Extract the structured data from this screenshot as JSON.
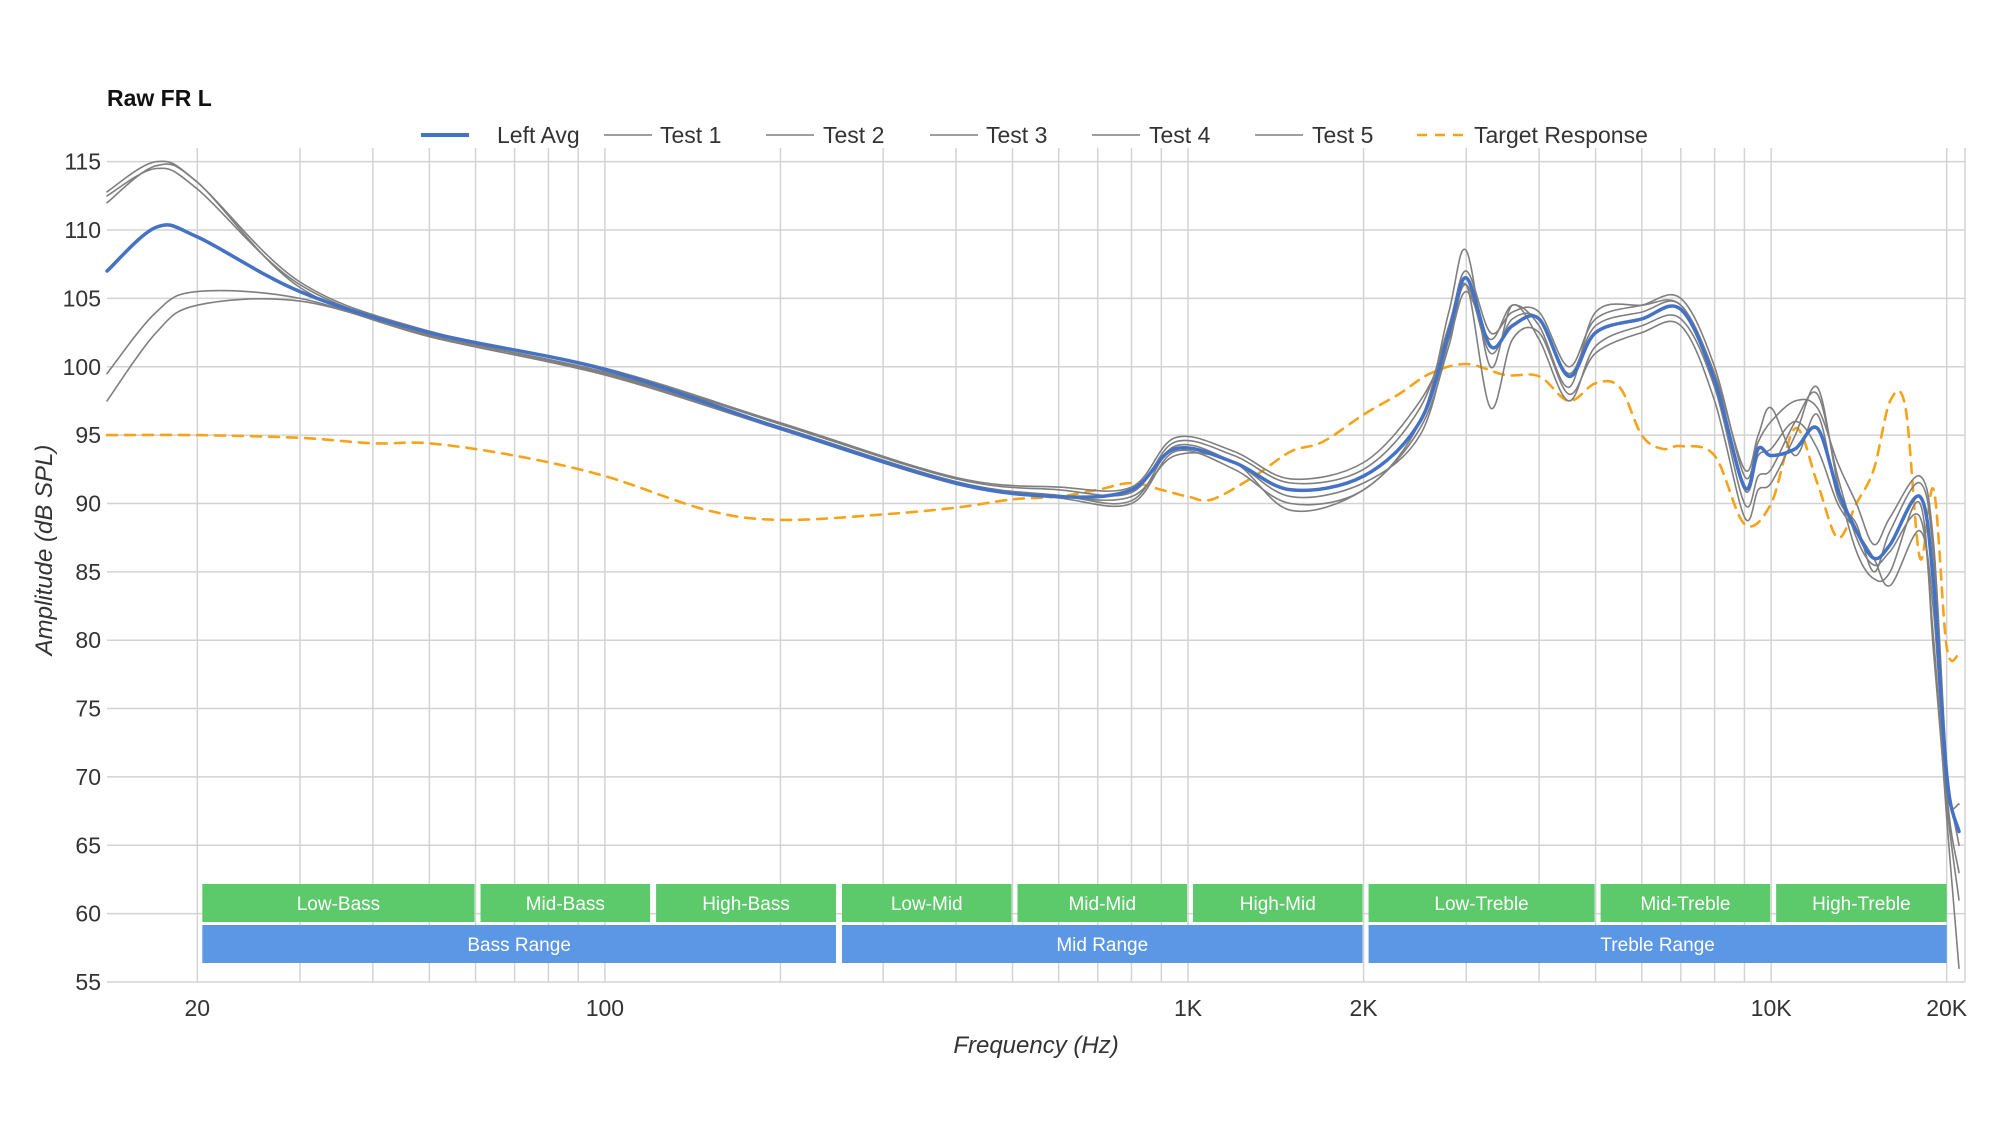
{
  "colors": {
    "left_avg": "#4472c4",
    "tests": "#7f7f7f",
    "target": "#f5a31a",
    "band_green": "#5cc96b",
    "band_blue": "#5c97e6"
  },
  "chart_data": {
    "type": "line",
    "title": "Raw FR L",
    "xlabel": "Frequency (Hz)",
    "ylabel": "Amplitude (dB SPL)",
    "x_scale": "log",
    "xlim": [
      14,
      21500
    ],
    "ylim": [
      55,
      116
    ],
    "grid": true,
    "legend_position": "top",
    "y_ticks": [
      "115",
      "110",
      "105",
      "100",
      "95",
      "90",
      "85",
      "80",
      "75",
      "70",
      "65",
      "60",
      "55"
    ],
    "x_ticks": [
      {
        "value": 20,
        "label": "20"
      },
      {
        "value": 100,
        "label": "100"
      },
      {
        "value": 1000,
        "label": "1K"
      },
      {
        "value": 2000,
        "label": "2K"
      },
      {
        "value": 10000,
        "label": "10K"
      },
      {
        "value": 20000,
        "label": "20K"
      }
    ],
    "minor_grid_x": [
      30,
      40,
      50,
      60,
      70,
      80,
      90,
      200,
      300,
      400,
      500,
      600,
      700,
      800,
      900,
      3000,
      4000,
      5000,
      6000,
      7000,
      8000,
      9000
    ],
    "ranges_top": [
      {
        "label": "Low-Bass",
        "from": 20,
        "to": 60
      },
      {
        "label": "Mid-Bass",
        "from": 60,
        "to": 120
      },
      {
        "label": "High-Bass",
        "from": 120,
        "to": 250
      },
      {
        "label": "Low-Mid",
        "from": 250,
        "to": 500
      },
      {
        "label": "Mid-Mid",
        "from": 500,
        "to": 1000
      },
      {
        "label": "High-Mid",
        "from": 1000,
        "to": 2000
      },
      {
        "label": "Low-Treble",
        "from": 2000,
        "to": 5000
      },
      {
        "label": "Mid-Treble",
        "from": 5000,
        "to": 10000
      },
      {
        "label": "High-Treble",
        "from": 10000,
        "to": 20000
      }
    ],
    "ranges_bottom": [
      {
        "label": "Bass Range",
        "from": 20,
        "to": 250
      },
      {
        "label": "Mid Range",
        "from": 250,
        "to": 2000
      },
      {
        "label": "Treble Range",
        "from": 2000,
        "to": 20000
      }
    ],
    "series": [
      {
        "name": "Left Avg",
        "style": "avg",
        "x": [
          14,
          17,
          20,
          30,
          50,
          100,
          200,
          400,
          600,
          800,
          950,
          1200,
          1500,
          2000,
          2500,
          2800,
          3000,
          3300,
          3600,
          4000,
          4500,
          5000,
          6000,
          7000,
          8000,
          9000,
          9500,
          10000,
          11000,
          12000,
          13000,
          14000,
          15000,
          16000,
          18000,
          19000,
          20000,
          21000
        ],
        "y": [
          107,
          110.2,
          109.5,
          105.5,
          102.5,
          99.8,
          95.5,
          91.5,
          90.5,
          91,
          94,
          93,
          91,
          92,
          96,
          102.5,
          106.5,
          101.5,
          103,
          103.5,
          99.3,
          102.5,
          103.5,
          104.2,
          99,
          91.2,
          94,
          93.5,
          94,
          95.5,
          91,
          88,
          86,
          87,
          90.5,
          84,
          70,
          66
        ]
      },
      {
        "name": "Test 1",
        "style": "test",
        "x": [
          14,
          17,
          20,
          30,
          50,
          100,
          200,
          400,
          600,
          800,
          950,
          1200,
          1500,
          2000,
          2500,
          2800,
          3000,
          3300,
          3600,
          4000,
          4500,
          5000,
          6000,
          7000,
          8000,
          9000,
          9500,
          10000,
          11000,
          12000,
          13000,
          14000,
          15000,
          16000,
          18000,
          19000,
          20000,
          21000
        ],
        "y": [
          112.5,
          114.5,
          113,
          106,
          102.5,
          99.8,
          95.8,
          91.8,
          91,
          90.8,
          94.5,
          93.5,
          91.5,
          92.5,
          97,
          103,
          107,
          102.5,
          104,
          104,
          100,
          103.5,
          104.5,
          105,
          100,
          92,
          94.5,
          96,
          97.5,
          97,
          93,
          90,
          87,
          89,
          92,
          87,
          71,
          65
        ]
      },
      {
        "name": "Test 2",
        "style": "test",
        "x": [
          14,
          17,
          20,
          30,
          50,
          100,
          200,
          400,
          600,
          800,
          950,
          1200,
          1500,
          2000,
          2500,
          2800,
          3000,
          3300,
          3600,
          4000,
          4500,
          5000,
          6000,
          7000,
          8000,
          9000,
          9500,
          10000,
          11000,
          12000,
          13000,
          14000,
          15000,
          16000,
          18000,
          19000,
          20000,
          21000
        ],
        "y": [
          112,
          114.7,
          113.5,
          105.8,
          102.4,
          99.6,
          95.6,
          91.6,
          90.6,
          90.2,
          94.2,
          93,
          90.5,
          91.5,
          95,
          102,
          106,
          101,
          103.5,
          103.5,
          99.5,
          103,
          104,
          104.5,
          99,
          91,
          93.5,
          94,
          96,
          94,
          90,
          88,
          86,
          84,
          88,
          82,
          69,
          68
        ]
      },
      {
        "name": "Test 3",
        "style": "test",
        "x": [
          14,
          17,
          20,
          30,
          50,
          100,
          200,
          400,
          600,
          800,
          950,
          1200,
          1500,
          2000,
          2500,
          2800,
          3000,
          3300,
          3600,
          4000,
          4500,
          5000,
          6000,
          7000,
          8000,
          9000,
          9500,
          10000,
          11000,
          12000,
          13000,
          14000,
          15000,
          16000,
          18000,
          19000,
          20000,
          21000
        ],
        "y": [
          99.5,
          104,
          105.5,
          105,
          102.2,
          99.4,
          95.4,
          91.4,
          90.4,
          90,
          93.8,
          92.5,
          90,
          91,
          96,
          104,
          108.5,
          100,
          104.5,
          102,
          97.5,
          101.5,
          103,
          103.5,
          98.5,
          90,
          92,
          92.5,
          96,
          98,
          92,
          87.5,
          85.5,
          86.5,
          89,
          80,
          67,
          56
        ]
      },
      {
        "name": "Test 4",
        "style": "test",
        "x": [
          14,
          17,
          20,
          30,
          50,
          100,
          200,
          400,
          600,
          800,
          950,
          1200,
          1500,
          2000,
          2500,
          2800,
          3000,
          3300,
          3600,
          4000,
          4500,
          5000,
          6000,
          7000,
          8000,
          9000,
          9500,
          10000,
          11000,
          12000,
          13000,
          14000,
          15000,
          16000,
          18000,
          19000,
          20000,
          21000
        ],
        "y": [
          97.5,
          102.5,
          104.5,
          104.8,
          102.3,
          99.5,
          95.5,
          91.5,
          90.5,
          90.5,
          93.5,
          93,
          89.5,
          91,
          95.5,
          101.5,
          106,
          97,
          102,
          102.5,
          98,
          101,
          102.5,
          103,
          97.5,
          89,
          91,
          91.5,
          95,
          98.5,
          91.5,
          86.5,
          84.5,
          85,
          90,
          79,
          68,
          61
        ]
      },
      {
        "name": "Test 5",
        "style": "test",
        "x": [
          14,
          17,
          20,
          30,
          50,
          100,
          200,
          400,
          600,
          800,
          950,
          1200,
          1500,
          2000,
          2500,
          2800,
          3000,
          3300,
          3600,
          4000,
          4500,
          5000,
          6000,
          7000,
          8000,
          9000,
          9500,
          10000,
          11000,
          12000,
          13000,
          14000,
          15000,
          16000,
          18000,
          19000,
          20000,
          21000
        ],
        "y": [
          112.8,
          115,
          113.5,
          106.2,
          102.6,
          99.9,
          95.9,
          91.9,
          91.2,
          91.2,
          94.8,
          93.8,
          91.8,
          93,
          97.5,
          102,
          105.5,
          102,
          104.5,
          103,
          98.5,
          104,
          104.5,
          104.5,
          99.5,
          92.5,
          95,
          97,
          93.5,
          96.5,
          90.5,
          88.5,
          85,
          88,
          91.5,
          86,
          69,
          63
        ]
      },
      {
        "name": "Target Response",
        "style": "target",
        "x": [
          14,
          20,
          30,
          40,
          50,
          70,
          100,
          150,
          200,
          300,
          400,
          500,
          600,
          700,
          800,
          900,
          1000,
          1100,
          1300,
          1500,
          1700,
          2000,
          2300,
          2600,
          3000,
          3500,
          4000,
          4500,
          5000,
          5500,
          6000,
          6500,
          7000,
          8000,
          9000,
          10000,
          11000,
          12000,
          13000,
          14000,
          15000,
          16000,
          17000,
          18000,
          19000,
          20000,
          21000
        ],
        "y": [
          95,
          95,
          94.8,
          94.4,
          94.4,
          93.5,
          92,
          89.5,
          88.8,
          89.2,
          89.7,
          90.3,
          90.5,
          91,
          91.5,
          91,
          90.5,
          90.3,
          92,
          93.8,
          94.5,
          96.5,
          98,
          99.5,
          100.2,
          99.4,
          99.3,
          97.5,
          98.8,
          98.5,
          95,
          94,
          94.2,
          93.5,
          88.5,
          90,
          95.5,
          91.5,
          87.5,
          90,
          92.5,
          97.5,
          97,
          86,
          91,
          79.5,
          79
        ]
      }
    ]
  }
}
